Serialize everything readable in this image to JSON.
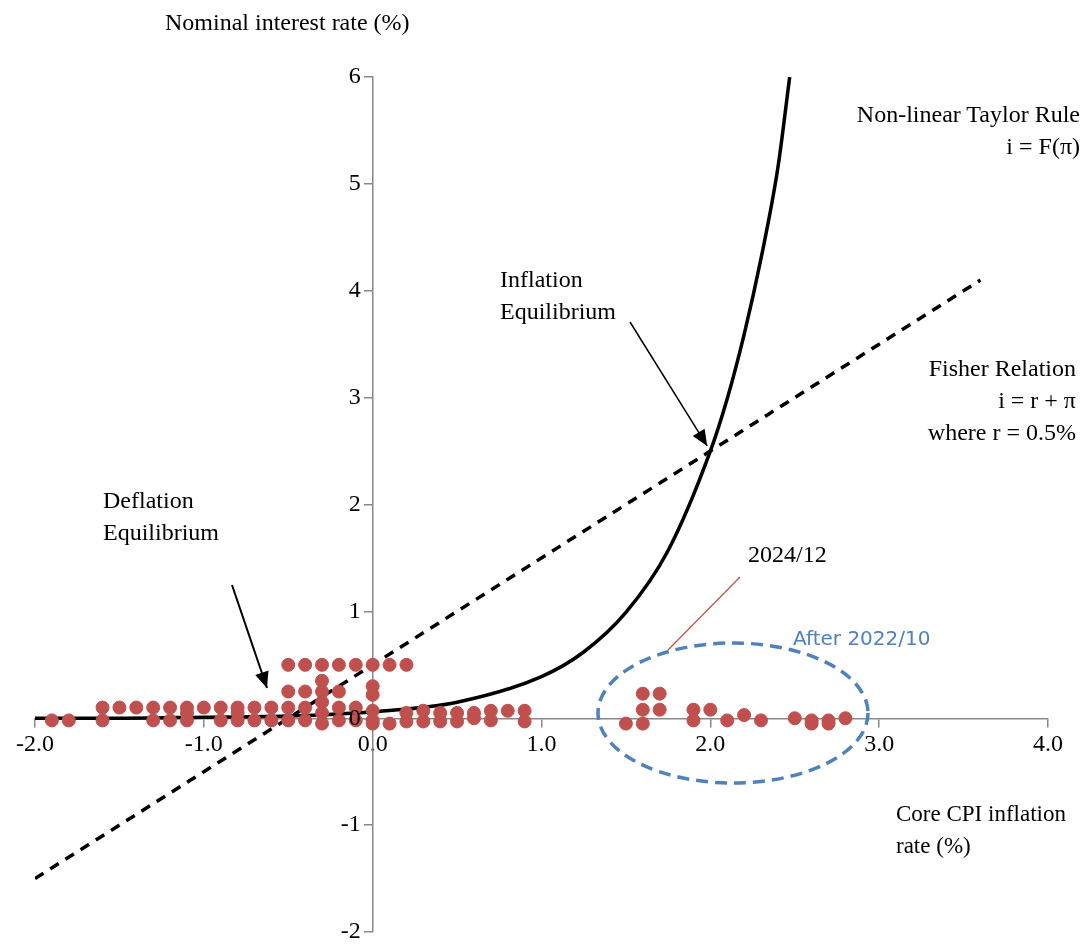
{
  "chart_data": {
    "type": "scatter",
    "xlabel": "Core CPI inflation rate (%)",
    "ylabel": "Nominal interest rate (%)",
    "xlim": [
      -2,
      4
    ],
    "ylim": [
      -2,
      6
    ],
    "xticks": [
      {
        "value": -2,
        "label": "-2.0"
      },
      {
        "value": -1,
        "label": "-1.0"
      },
      {
        "value": 0,
        "label": "0.0"
      },
      {
        "value": 1,
        "label": "1.0"
      },
      {
        "value": 2,
        "label": "2.0"
      },
      {
        "value": 3,
        "label": "3.0"
      },
      {
        "value": 4,
        "label": "4.0"
      }
    ],
    "yticks": [
      -2,
      -1,
      0,
      1,
      2,
      3,
      4,
      5,
      6
    ],
    "grid": false,
    "legend": false,
    "series": [
      {
        "type": "scatter",
        "color": "#c0504d",
        "marker": "circle",
        "x": [
          -1.9,
          -1.8,
          -1.6,
          -1.6,
          -1.5,
          -1.4,
          -1.3,
          -1.3,
          -1.2,
          -1.2,
          -1.1,
          -1.1,
          -1.1,
          -1.0,
          -0.9,
          -0.9,
          -0.8,
          -0.8,
          -0.8,
          -0.7,
          -0.7,
          -0.6,
          -0.6,
          -0.5,
          -0.5,
          -0.5,
          -0.5,
          -0.4,
          -0.4,
          -0.4,
          -0.4,
          -0.3,
          -0.3,
          -0.3,
          -0.3,
          -0.3,
          -0.3,
          -0.2,
          -0.2,
          -0.2,
          -0.2,
          -0.1,
          -0.1,
          -0.1,
          0,
          0,
          0,
          0,
          0,
          0,
          0.1,
          0.1,
          0.2,
          0.2,
          0.2,
          0.3,
          0.3,
          0.4,
          0.4,
          0.5,
          0.5,
          0.6,
          0.6,
          0.7,
          0.7,
          0.8,
          0.9,
          0.9,
          1.5,
          1.6,
          1.6,
          1.6,
          1.7,
          1.7,
          1.9,
          1.9,
          2.0,
          2.1,
          2.2,
          2.3,
          2.5,
          2.6,
          2.6,
          2.7,
          2.7,
          2.8
        ],
        "values": [
          -0.02,
          -0.02,
          0.1,
          -0.02,
          0.1,
          0.1,
          0.1,
          -0.02,
          0.1,
          -0.02,
          0.1,
          0.05,
          -0.02,
          0.1,
          0.1,
          -0.02,
          0.1,
          0.05,
          -0.02,
          0.1,
          -0.02,
          0.1,
          -0.02,
          0.5,
          0.25,
          0.1,
          -0.02,
          0.5,
          0.25,
          0.1,
          -0.02,
          0.5,
          0.35,
          0.25,
          0.15,
          0.05,
          -0.05,
          0.5,
          0.25,
          0.1,
          -0.02,
          0.5,
          0.1,
          -0.02,
          0.5,
          0.3,
          0.22,
          0.07,
          -0.02,
          -0.05,
          0.5,
          -0.05,
          0.5,
          0.05,
          -0.03,
          0.07,
          -0.03,
          0.05,
          -0.03,
          0.05,
          -0.03,
          0.05,
          0,
          0.07,
          -0.02,
          0.07,
          0.07,
          -0.03,
          -0.05,
          0.23,
          0.08,
          -0.05,
          0.23,
          0.08,
          0.08,
          -0.02,
          0.08,
          -0.02,
          0.03,
          -0.02,
          0,
          -0.02,
          -0.05,
          -0.02,
          -0.05,
          0
        ]
      },
      {
        "type": "line",
        "color": "#000000",
        "line_style": "solid",
        "x": [
          -2,
          -1.5,
          -1,
          -0.5,
          0,
          0.5,
          1,
          1.25,
          1.5,
          1.75,
          2,
          2.1,
          2.2,
          2.3,
          2.4,
          2.47
        ],
        "values": [
          0,
          0,
          0.01,
          0.02,
          0.06,
          0.15,
          0.39,
          0.62,
          0.99,
          1.57,
          2.5,
          2.99,
          3.59,
          4.3,
          5.15,
          6
        ]
      },
      {
        "type": "line",
        "color": "#000000",
        "line_style": "dashed",
        "x": [
          -2,
          3.6
        ],
        "values": [
          -1.5,
          4.1
        ]
      }
    ],
    "annotations": [
      "Non-linear Taylor Rule\ni = F(π)",
      "Fisher Relation\ni = r + π\nwhere r = 0.5%",
      {
        "text": "Inflation Equilibrium",
        "x": 2.0,
        "y": 2.5
      },
      "Deflation Equilibrium",
      "2024/12",
      "After 2022/10"
    ]
  }
}
